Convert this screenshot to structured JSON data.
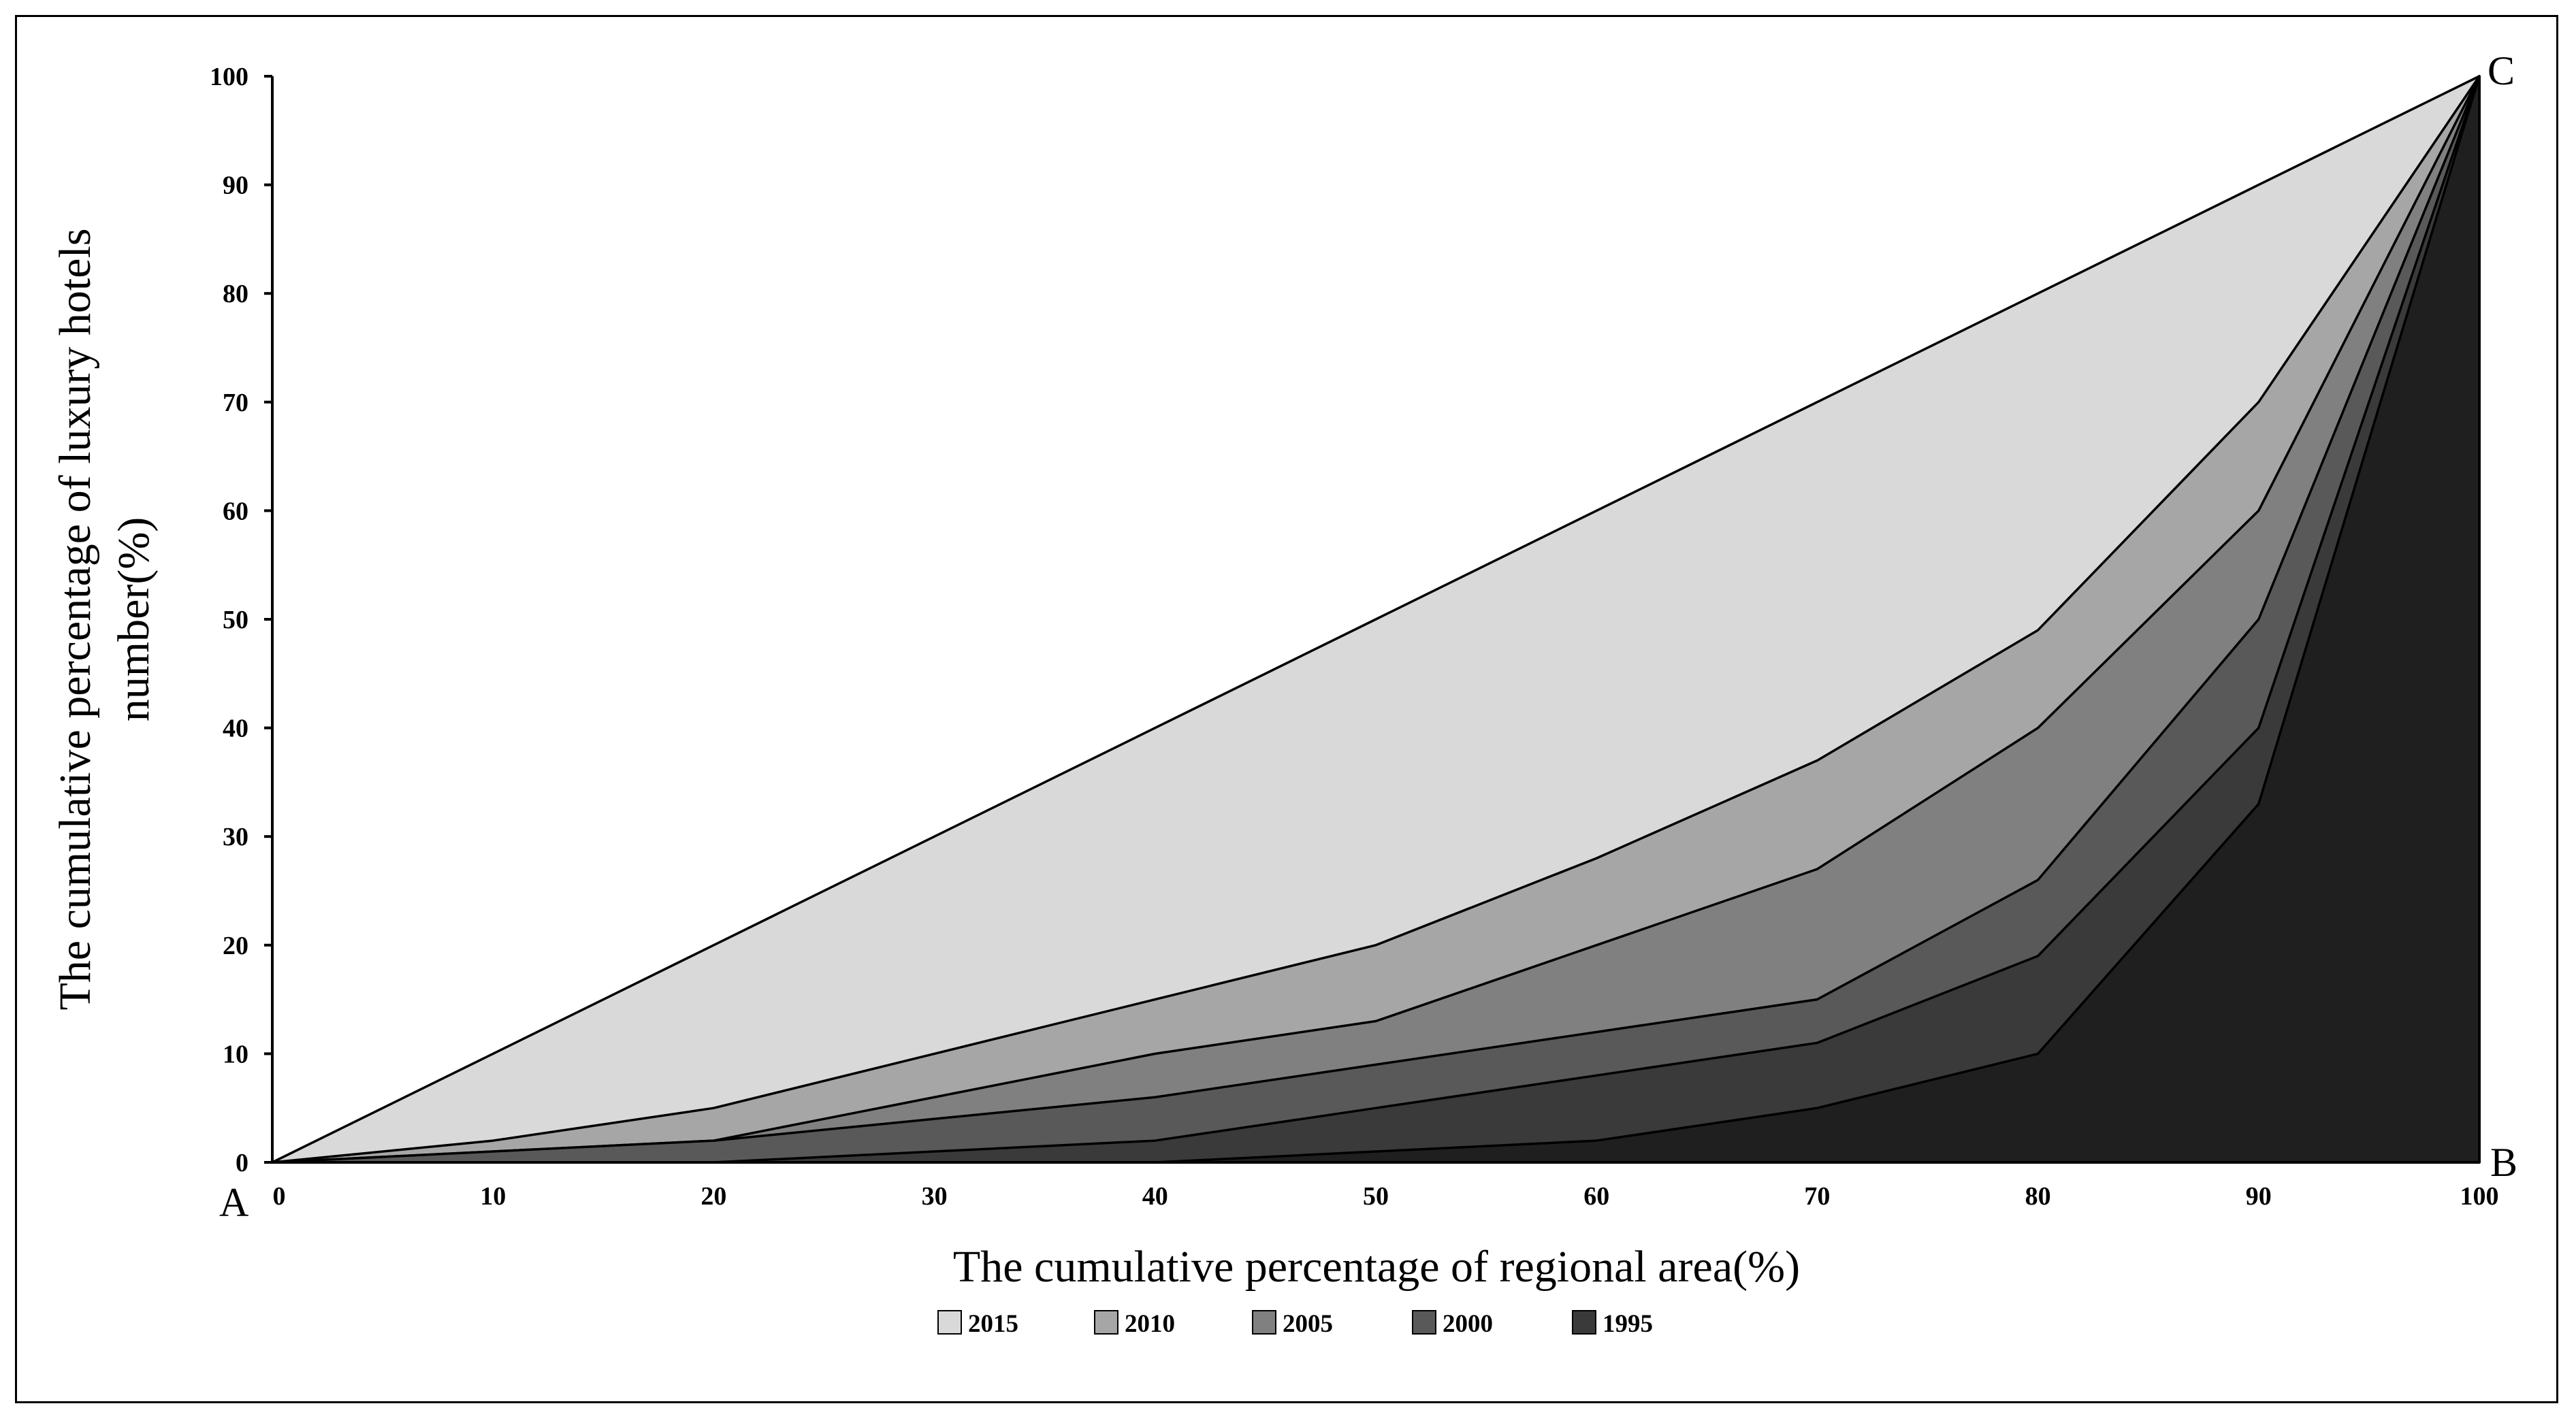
{
  "chart_data": {
    "type": "area",
    "xlabel": "The cumulative percentage of regional area(%)",
    "ylabel_lines": [
      "The cumulative percentage of luxury hotels",
      "number(%)"
    ],
    "xlim": [
      0,
      100
    ],
    "ylim": [
      0,
      100
    ],
    "x_ticks": [
      "0",
      "10",
      "20",
      "30",
      "40",
      "50",
      "60",
      "70",
      "80",
      "90",
      "100"
    ],
    "y_ticks": [
      "0",
      "10",
      "20",
      "30",
      "40",
      "50",
      "60",
      "70",
      "80",
      "90",
      "100"
    ],
    "corner_labels": {
      "origin": "A",
      "bottom_right": "B",
      "top_right": "C"
    },
    "grid": false,
    "legend_position": "bottom",
    "x": [
      0,
      10,
      20,
      30,
      40,
      50,
      60,
      70,
      80,
      90,
      100
    ],
    "series": [
      {
        "name": "2015",
        "color": "#d9d9d9",
        "values": [
          0,
          10,
          20,
          30,
          40,
          50,
          60,
          70,
          80,
          90,
          100
        ]
      },
      {
        "name": "2010",
        "color": "#a6a6a6",
        "values": [
          0,
          2,
          5,
          10,
          15,
          20,
          28,
          37,
          49,
          70,
          100
        ]
      },
      {
        "name": "2005",
        "color": "#808080",
        "values": [
          0,
          1,
          2,
          6,
          10,
          13,
          20,
          27,
          40,
          60,
          100
        ]
      },
      {
        "name": "2000",
        "color": "#595959",
        "values": [
          0,
          1,
          2,
          4,
          6,
          9,
          12,
          15,
          26,
          50,
          100
        ]
      },
      {
        "name": "1995",
        "color": "#3a3a3a",
        "values": [
          0,
          0,
          0,
          1,
          2,
          5,
          8,
          11,
          19,
          40,
          100
        ]
      },
      {
        "name": "",
        "color": "#1f1f1f",
        "values": [
          0,
          0,
          0,
          0,
          0,
          1,
          2,
          5,
          10,
          33,
          100
        ]
      }
    ]
  }
}
